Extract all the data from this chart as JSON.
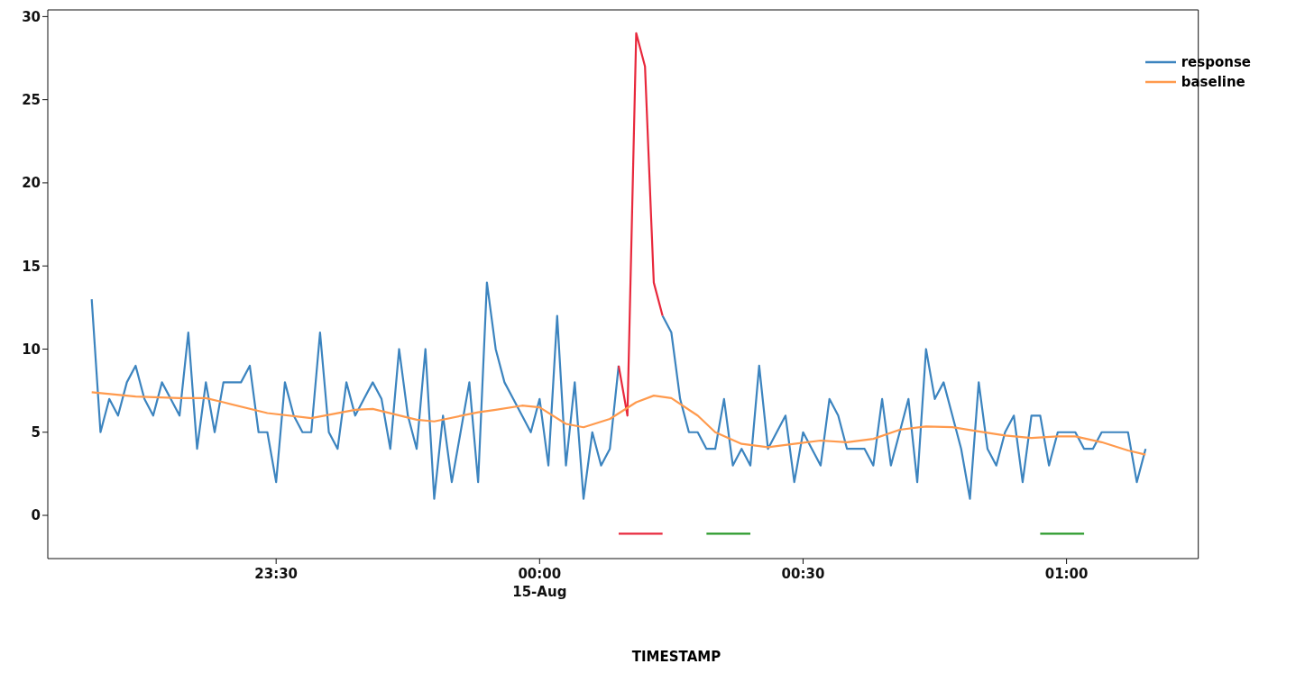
{
  "chart_data": {
    "type": "line",
    "xlabel": "TIMESTAMP",
    "xlim": [
      "--08-14T23:04",
      "--08-15T01:15"
    ],
    "ylim": [
      -2.6,
      30.4
    ],
    "xticks": [
      {
        "value": "--08-14T23:30",
        "label": "23:30"
      },
      {
        "value": "--08-15T00:00",
        "label": "00:00\n15-Aug"
      },
      {
        "value": "--08-15T00:30",
        "label": "00:30"
      },
      {
        "value": "--08-15T01:00",
        "label": "01:00"
      }
    ],
    "yticks": [
      0,
      5,
      10,
      15,
      20,
      25,
      30
    ],
    "grid": false,
    "legend": "top right",
    "line_style": "solid",
    "series": [
      {
        "name": "response",
        "color": "#3c84bf",
        "x": [
          "--08-14T23:09",
          "--08-14T23:10",
          "--08-14T23:11",
          "--08-14T23:12",
          "--08-14T23:13",
          "--08-14T23:14",
          "--08-14T23:15",
          "--08-14T23:16",
          "--08-14T23:17",
          "--08-14T23:18",
          "--08-14T23:19",
          "--08-14T23:20",
          "--08-14T23:21",
          "--08-14T23:22",
          "--08-14T23:23",
          "--08-14T23:24",
          "--08-14T23:25",
          "--08-14T23:26",
          "--08-14T23:27",
          "--08-14T23:28",
          "--08-14T23:29",
          "--08-14T23:30",
          "--08-14T23:31",
          "--08-14T23:32",
          "--08-14T23:33",
          "--08-14T23:34",
          "--08-14T23:35",
          "--08-14T23:36",
          "--08-14T23:37",
          "--08-14T23:38",
          "--08-14T23:39",
          "--08-14T23:40",
          "--08-14T23:41",
          "--08-14T23:42",
          "--08-14T23:43",
          "--08-14T23:44",
          "--08-14T23:45",
          "--08-14T23:46",
          "--08-14T23:47",
          "--08-14T23:48",
          "--08-14T23:49",
          "--08-14T23:50",
          "--08-14T23:51",
          "--08-14T23:52",
          "--08-14T23:53",
          "--08-14T23:54",
          "--08-14T23:55",
          "--08-14T23:56",
          "--08-14T23:57",
          "--08-14T23:58",
          "--08-14T23:59",
          "--08-15T00:00",
          "--08-15T00:01",
          "--08-15T00:02",
          "--08-15T00:03",
          "--08-15T00:04",
          "--08-15T00:05",
          "--08-15T00:06",
          "--08-15T00:07",
          "--08-15T00:08",
          "--08-15T00:09",
          "--08-15T00:10",
          "--08-15T00:11",
          "--08-15T00:12",
          "--08-15T00:13",
          "--08-15T00:14",
          "--08-15T00:15",
          "--08-15T00:16",
          "--08-15T00:17",
          "--08-15T00:18",
          "--08-15T00:19",
          "--08-15T00:20",
          "--08-15T00:21",
          "--08-15T00:22",
          "--08-15T00:23",
          "--08-15T00:24",
          "--08-15T00:25",
          "--08-15T00:26",
          "--08-15T00:27",
          "--08-15T00:28",
          "--08-15T00:29",
          "--08-15T00:30",
          "--08-15T00:31",
          "--08-15T00:32",
          "--08-15T00:33",
          "--08-15T00:34",
          "--08-15T00:35",
          "--08-15T00:36",
          "--08-15T00:37",
          "--08-15T00:38",
          "--08-15T00:39",
          "--08-15T00:40",
          "--08-15T00:41",
          "--08-15T00:42",
          "--08-15T00:43",
          "--08-15T00:44",
          "--08-15T00:45",
          "--08-15T00:46",
          "--08-15T00:47",
          "--08-15T00:48",
          "--08-15T00:49",
          "--08-15T00:50",
          "--08-15T00:51",
          "--08-15T00:52",
          "--08-15T00:53",
          "--08-15T00:54",
          "--08-15T00:55",
          "--08-15T00:56",
          "--08-15T00:57",
          "--08-15T00:58",
          "--08-15T00:59",
          "--08-15T01:00",
          "--08-15T01:01",
          "--08-15T01:02",
          "--08-15T01:03",
          "--08-15T01:04",
          "--08-15T01:05",
          "--08-15T01:06",
          "--08-15T01:07",
          "--08-15T01:08",
          "--08-15T01:09"
        ],
        "values": [
          13,
          5,
          7,
          6,
          8,
          9,
          7,
          6,
          8,
          7,
          6,
          11,
          4,
          8,
          5,
          8,
          8,
          8,
          9,
          5,
          5,
          2,
          8,
          6,
          5,
          5,
          11,
          5,
          4,
          8,
          6,
          7,
          8,
          7,
          4,
          10,
          6,
          4,
          10,
          1,
          6,
          2,
          5,
          8,
          2,
          14,
          10,
          8,
          7,
          6,
          5,
          7,
          3,
          12,
          3,
          8,
          1,
          5,
          3,
          4,
          9,
          null,
          null,
          null,
          null,
          12,
          11,
          7,
          5,
          5,
          4,
          4,
          7,
          3,
          4,
          3,
          9,
          4,
          5,
          6,
          2,
          5,
          4,
          3,
          7,
          6,
          4,
          4,
          4,
          3,
          7,
          3,
          5,
          7,
          2,
          10,
          7,
          8,
          6,
          4,
          1,
          8,
          4,
          3,
          5,
          6,
          2,
          6,
          6,
          3,
          5,
          5,
          5,
          4,
          4,
          5,
          5,
          5,
          5,
          2,
          4
        ]
      },
      {
        "color": "#e8283c",
        "x": [
          "--08-15T00:09",
          "--08-15T00:10",
          "--08-15T00:11",
          "--08-15T00:12",
          "--08-15T00:13",
          "--08-15T00:14"
        ],
        "values": [
          9,
          6,
          29,
          27,
          14,
          12
        ]
      },
      {
        "name": "baseline",
        "color": "#ff9a4d",
        "x": [
          "--08-14T23:09",
          "--08-14T23:14",
          "--08-14T23:19",
          "--08-14T23:22",
          "--08-14T23:24",
          "--08-14T23:29",
          "--08-14T23:34",
          "--08-14T23:39",
          "--08-14T23:41",
          "--08-14T23:46",
          "--08-14T23:48",
          "--08-14T23:53",
          "--08-14T23:55",
          "--08-14T23:58",
          "--08-15T00:00",
          "--08-15T00:03",
          "--08-15T00:05",
          "--08-15T00:08",
          "--08-15T00:11",
          "--08-15T00:13",
          "--08-15T00:15",
          "--08-15T00:18",
          "--08-15T00:20",
          "--08-15T00:23",
          "--08-15T00:26",
          "--08-15T00:29",
          "--08-15T00:32",
          "--08-15T00:35",
          "--08-15T00:38",
          "--08-15T00:41",
          "--08-15T00:44",
          "--08-15T00:47",
          "--08-15T00:50",
          "--08-15T00:53",
          "--08-15T00:56",
          "--08-15T00:59",
          "--08-15T01:01",
          "--08-15T01:04",
          "--08-15T01:07",
          "--08-15T01:09"
        ],
        "values": [
          7.4,
          7.15,
          7.05,
          7.05,
          6.8,
          6.15,
          5.85,
          6.35,
          6.4,
          5.75,
          5.65,
          6.2,
          6.35,
          6.6,
          6.5,
          5.5,
          5.3,
          5.8,
          6.8,
          7.2,
          7.05,
          6.0,
          5.0,
          4.3,
          4.1,
          4.3,
          4.5,
          4.4,
          4.6,
          5.15,
          5.35,
          5.3,
          5.05,
          4.8,
          4.65,
          4.75,
          4.75,
          4.4,
          3.9,
          3.65
        ]
      },
      {
        "color": "#e8283c",
        "x": [
          "--08-15T00:09",
          "--08-15T00:14"
        ],
        "values": [
          -1.1,
          -1.1
        ]
      },
      {
        "color": "#2a9a2a",
        "x": [
          "--08-15T00:19",
          "--08-15T00:24"
        ],
        "values": [
          -1.1,
          -1.1
        ]
      },
      {
        "color": "#2a9a2a",
        "x": [
          "--08-15T00:57",
          "--08-15T01:02"
        ],
        "values": [
          -1.1,
          -1.1
        ]
      }
    ]
  }
}
